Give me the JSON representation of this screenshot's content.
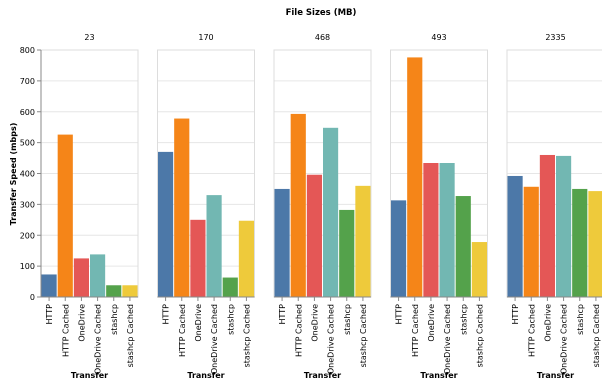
{
  "chart_data": {
    "type": "bar",
    "title": "File Sizes (MB)",
    "ylabel": "Transfer Speed (mbps)",
    "xlabel": "Transfer",
    "ylim": [
      0,
      800
    ],
    "yticks": [
      0,
      100,
      200,
      300,
      400,
      500,
      600,
      700,
      800
    ],
    "grid": true,
    "categories": [
      "HTTP",
      "HTTP Cached",
      "OneDrive",
      "OneDrive Cached",
      "stashcp",
      "stashcp Cached"
    ],
    "colors": [
      "#4c78a8",
      "#f58518",
      "#e45756",
      "#72b7b2",
      "#54a24b",
      "#eeca3b"
    ],
    "facets": [
      {
        "label": "23",
        "values": [
          73,
          526,
          125,
          138,
          38,
          38
        ]
      },
      {
        "label": "170",
        "values": [
          470,
          578,
          250,
          330,
          63,
          247
        ]
      },
      {
        "label": "468",
        "values": [
          350,
          593,
          396,
          548,
          282,
          360
        ]
      },
      {
        "label": "493",
        "values": [
          313,
          776,
          434,
          434,
          327,
          178
        ]
      },
      {
        "label": "2335",
        "values": [
          392,
          357,
          460,
          457,
          350,
          343
        ]
      }
    ]
  }
}
